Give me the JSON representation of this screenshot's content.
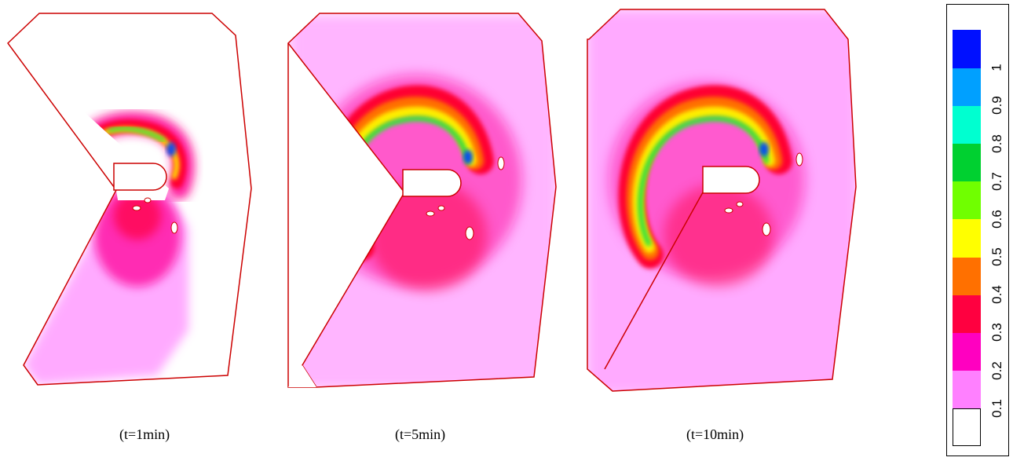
{
  "panels": [
    {
      "caption": "(t=1min)"
    },
    {
      "caption": "(t=5min)"
    },
    {
      "caption": "(t=10min)"
    }
  ],
  "colorbar": {
    "labels": [
      "0.1",
      "0.2",
      "0.3",
      "0.4",
      "0.5",
      "0.6",
      "0.7",
      "0.8",
      "0.9",
      "1"
    ],
    "colors": [
      "#ffffff",
      "#ff80ff",
      "#ff00c0",
      "#ff0040",
      "#ff7000",
      "#ffff00",
      "#70ff00",
      "#00d030",
      "#00ffd0",
      "#00a0ff",
      "#0010ff"
    ]
  },
  "colors": {
    "outline": "#cc0000",
    "background_tint": "#ff9cff"
  }
}
